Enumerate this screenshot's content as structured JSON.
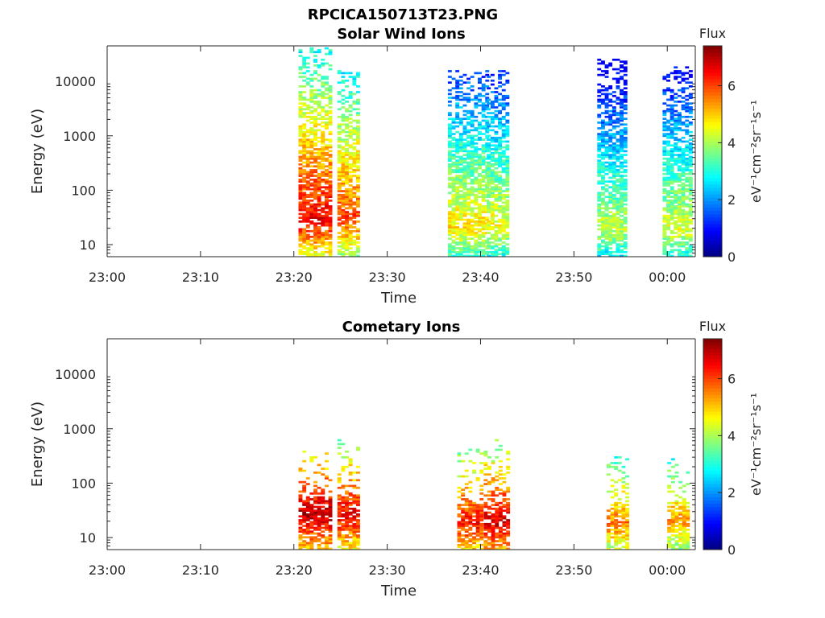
{
  "figure_title": "RPCICA150713T23.PNG",
  "chart_data": [
    {
      "type": "heatmap",
      "title": "Solar Wind Ions",
      "xlabel": "Time",
      "ylabel": "Energy (eV)",
      "y_scale": "log",
      "ylim": [
        6,
        45000
      ],
      "xlim": [
        "23:00",
        "00:03"
      ],
      "x_ticks": [
        "23:00",
        "23:10",
        "23:20",
        "23:30",
        "23:40",
        "23:50",
        "00:00"
      ],
      "y_ticks": [
        "10",
        "100",
        "1000",
        "10000"
      ],
      "colorbar": {
        "label": "Flux",
        "units": "eV⁻¹cm⁻²sr⁻¹s⁻¹",
        "range": [
          0,
          7.4
        ],
        "ticks": [
          "0",
          "2",
          "4",
          "6"
        ],
        "colormap": "jet"
      },
      "grid": false,
      "bursts": [
        {
          "t_start": "23:20:30",
          "t_end": "23:24:00",
          "e_max": 40000,
          "peak_energy": 28,
          "peak_flux": 6.6
        },
        {
          "t_start": "23:24:40",
          "t_end": "23:27:00",
          "e_max": 15000,
          "peak_energy": 28,
          "peak_flux": 6.0
        },
        {
          "t_start": "23:36:30",
          "t_end": "23:40:30",
          "e_max": 15000,
          "peak_energy": 20,
          "peak_flux": 4.8
        },
        {
          "t_start": "23:40:40",
          "t_end": "23:43:00",
          "e_max": 15000,
          "peak_energy": 20,
          "peak_flux": 4.6
        },
        {
          "t_start": "23:52:30",
          "t_end": "23:55:30",
          "e_max": 25000,
          "peak_energy": 18,
          "peak_flux": 4.2
        },
        {
          "t_start": "23:59:30",
          "t_end": "00:02:20",
          "e_max": 18000,
          "peak_energy": 18,
          "peak_flux": 4.4
        }
      ]
    },
    {
      "type": "heatmap",
      "title": "Cometary Ions",
      "xlabel": "Time",
      "ylabel": "Energy (eV)",
      "y_scale": "log",
      "ylim": [
        6,
        45000
      ],
      "xlim": [
        "23:00",
        "00:03"
      ],
      "x_ticks": [
        "23:00",
        "23:10",
        "23:20",
        "23:30",
        "23:40",
        "23:50",
        "00:00"
      ],
      "y_ticks": [
        "10",
        "100",
        "1000",
        "10000"
      ],
      "colorbar": {
        "label": "Flux",
        "units": "eV⁻¹cm⁻²sr⁻¹s⁻¹",
        "range": [
          0,
          7.4
        ],
        "ticks": [
          "0",
          "2",
          "4",
          "6"
        ],
        "colormap": "jet"
      },
      "grid": false,
      "bursts": [
        {
          "t_start": "23:20:30",
          "t_end": "23:24:00",
          "e_max": 400,
          "peak_energy": 25,
          "peak_flux": 7.0
        },
        {
          "t_start": "23:24:40",
          "t_end": "23:27:00",
          "e_max": 700,
          "peak_energy": 25,
          "peak_flux": 6.6
        },
        {
          "t_start": "23:37:30",
          "t_end": "23:40:00",
          "e_max": 400,
          "peak_energy": 18,
          "peak_flux": 6.4
        },
        {
          "t_start": "23:40:20",
          "t_end": "23:43:00",
          "e_max": 600,
          "peak_energy": 18,
          "peak_flux": 6.8
        },
        {
          "t_start": "23:53:30",
          "t_end": "23:55:30",
          "e_max": 300,
          "peak_energy": 18,
          "peak_flux": 5.6
        },
        {
          "t_start": "00:00:00",
          "t_end": "00:02:00",
          "e_max": 350,
          "peak_energy": 20,
          "peak_flux": 5.4
        }
      ]
    }
  ]
}
